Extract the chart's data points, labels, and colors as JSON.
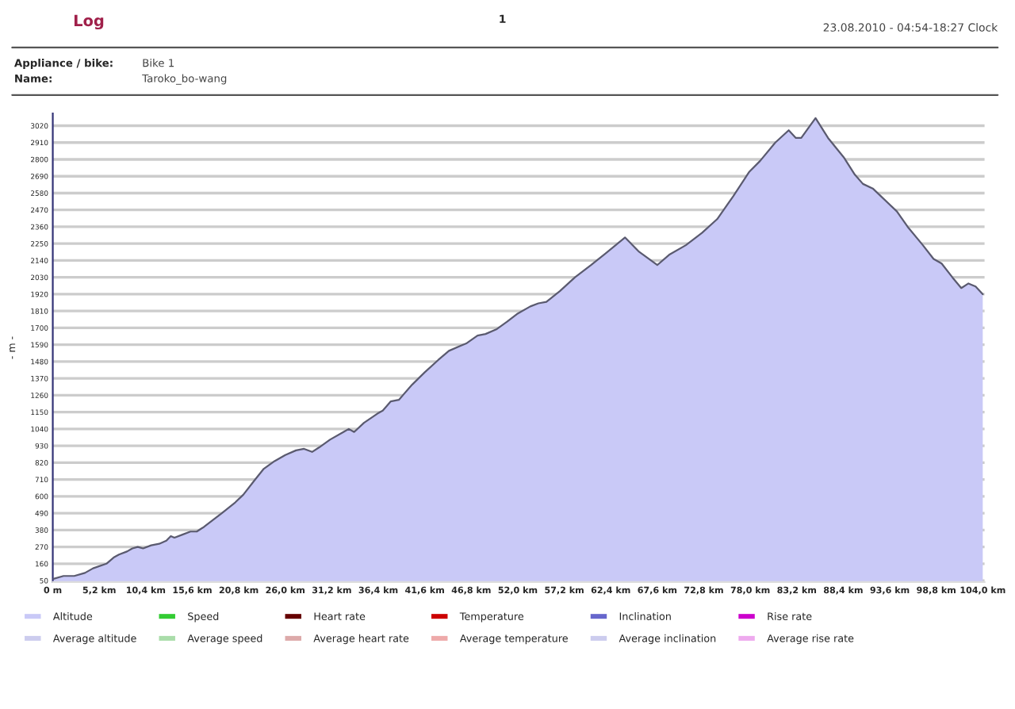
{
  "chart_data": {
    "type": "area",
    "title": "Log",
    "ylabel": "- m -",
    "annotations": [
      "1",
      "23.08.2010 - 04:54-18:27 Clock",
      "Appliance / bike:",
      "Bike 1",
      "Name:",
      "Taroko_bo-wang"
    ],
    "x": [
      0,
      1.2,
      2.4,
      3.6,
      4.5,
      6.0,
      6.8,
      7.4,
      8.3,
      8.9,
      9.5,
      10.1,
      11.0,
      11.9,
      12.7,
      13.2,
      13.6,
      14.5,
      15.4,
      16.1,
      16.9,
      18.0,
      18.9,
      20.4,
      21.3,
      22.5,
      23.6,
      24.8,
      26.0,
      27.2,
      28.1,
      29.0,
      29.8,
      31.0,
      32.5,
      33.1,
      33.7,
      34.8,
      36.3,
      36.9,
      37.8,
      38.7,
      40.2,
      41.6,
      43.1,
      44.3,
      45.5,
      46.3,
      47.5,
      48.4,
      49.6,
      50.8,
      51.9,
      53.4,
      54.3,
      55.2,
      56.7,
      58.4,
      60.2,
      61.7,
      64.0,
      65.5,
      67.6,
      69.0,
      70.8,
      72.6,
      74.3,
      76.1,
      77.9,
      79.1,
      80.8,
      82.3,
      83.1,
      83.7,
      85.3,
      86.7,
      88.5,
      89.7,
      90.6,
      91.7,
      94.4,
      95.6,
      97.3,
      98.5,
      99.4,
      100.6,
      101.6,
      102.4,
      103.2,
      104.0
    ],
    "series": [
      {
        "name": "Altitude",
        "color": "#c9c9f7",
        "values": [
          60,
          80,
          80,
          100,
          130,
          160,
          200,
          220,
          240,
          260,
          270,
          260,
          280,
          290,
          310,
          340,
          330,
          350,
          370,
          370,
          400,
          450,
          490,
          560,
          610,
          700,
          780,
          830,
          870,
          900,
          910,
          890,
          920,
          970,
          1020,
          1040,
          1020,
          1080,
          1140,
          1160,
          1220,
          1230,
          1330,
          1410,
          1490,
          1550,
          1580,
          1600,
          1650,
          1660,
          1690,
          1740,
          1790,
          1840,
          1860,
          1870,
          1940,
          2030,
          2110,
          2180,
          2290,
          2200,
          2110,
          2180,
          2240,
          2320,
          2410,
          2560,
          2720,
          2790,
          2910,
          2990,
          2940,
          2940,
          3070,
          2940,
          2810,
          2700,
          2640,
          2610,
          2460,
          2360,
          2240,
          2150,
          2120,
          2030,
          1960,
          1990,
          1970,
          1920
        ]
      },
      {
        "name": "Speed",
        "color": "#33cc33",
        "values": [
          null,
          null,
          null,
          null,
          null,
          null,
          null,
          null,
          null,
          null,
          null,
          null,
          null,
          null,
          null,
          null,
          null,
          null,
          null,
          null,
          null,
          null,
          null,
          null,
          null,
          null,
          null,
          null,
          null,
          null,
          null,
          null,
          null,
          null,
          null,
          null,
          null,
          null,
          null,
          null,
          null,
          null,
          null,
          null,
          null,
          null,
          null,
          null,
          null,
          null,
          null,
          null,
          null,
          null,
          null,
          null,
          null,
          null,
          null,
          null,
          null,
          null,
          null,
          null,
          null,
          null,
          null,
          null,
          null,
          null,
          null,
          null,
          null,
          null,
          null,
          null,
          null,
          null,
          null,
          null,
          null,
          null,
          null,
          null,
          null,
          null,
          null,
          null,
          null,
          null
        ]
      },
      {
        "name": "Heart rate",
        "color": "#660000",
        "values": [
          null,
          null,
          null,
          null,
          null,
          null,
          null,
          null,
          null,
          null,
          null,
          null,
          null,
          null,
          null,
          null,
          null,
          null,
          null,
          null,
          null,
          null,
          null,
          null,
          null,
          null,
          null,
          null,
          null,
          null,
          null,
          null,
          null,
          null,
          null,
          null,
          null,
          null,
          null,
          null,
          null,
          null,
          null,
          null,
          null,
          null,
          null,
          null,
          null,
          null,
          null,
          null,
          null,
          null,
          null,
          null,
          null,
          null,
          null,
          null,
          null,
          null,
          null,
          null,
          null,
          null,
          null,
          null,
          null,
          null,
          null,
          null,
          null,
          null,
          null,
          null,
          null,
          null,
          null,
          null,
          null,
          null,
          null,
          null,
          null,
          null,
          null,
          null,
          null,
          null
        ]
      },
      {
        "name": "Temperature",
        "color": "#cc0000",
        "values": [
          null,
          null,
          null,
          null,
          null,
          null,
          null,
          null,
          null,
          null,
          null,
          null,
          null,
          null,
          null,
          null,
          null,
          null,
          null,
          null,
          null,
          null,
          null,
          null,
          null,
          null,
          null,
          null,
          null,
          null,
          null,
          null,
          null,
          null,
          null,
          null,
          null,
          null,
          null,
          null,
          null,
          null,
          null,
          null,
          null,
          null,
          null,
          null,
          null,
          null,
          null,
          null,
          null,
          null,
          null,
          null,
          null,
          null,
          null,
          null,
          null,
          null,
          null,
          null,
          null,
          null,
          null,
          null,
          null,
          null,
          null,
          null,
          null,
          null,
          null,
          null,
          null,
          null,
          null,
          null,
          null,
          null,
          null,
          null,
          null,
          null,
          null,
          null,
          null,
          null
        ]
      },
      {
        "name": "Inclination",
        "color": "#6666cc",
        "values": [
          null,
          null,
          null,
          null,
          null,
          null,
          null,
          null,
          null,
          null,
          null,
          null,
          null,
          null,
          null,
          null,
          null,
          null,
          null,
          null,
          null,
          null,
          null,
          null,
          null,
          null,
          null,
          null,
          null,
          null,
          null,
          null,
          null,
          null,
          null,
          null,
          null,
          null,
          null,
          null,
          null,
          null,
          null,
          null,
          null,
          null,
          null,
          null,
          null,
          null,
          null,
          null,
          null,
          null,
          null,
          null,
          null,
          null,
          null,
          null,
          null,
          null,
          null,
          null,
          null,
          null,
          null,
          null,
          null,
          null,
          null,
          null,
          null,
          null,
          null,
          null,
          null,
          null,
          null,
          null,
          null,
          null,
          null,
          null,
          null,
          null,
          null,
          null,
          null,
          null
        ]
      },
      {
        "name": "Rise rate",
        "color": "#cc00cc",
        "values": [
          null,
          null,
          null,
          null,
          null,
          null,
          null,
          null,
          null,
          null,
          null,
          null,
          null,
          null,
          null,
          null,
          null,
          null,
          null,
          null,
          null,
          null,
          null,
          null,
          null,
          null,
          null,
          null,
          null,
          null,
          null,
          null,
          null,
          null,
          null,
          null,
          null,
          null,
          null,
          null,
          null,
          null,
          null,
          null,
          null,
          null,
          null,
          null,
          null,
          null,
          null,
          null,
          null,
          null,
          null,
          null,
          null,
          null,
          null,
          null,
          null,
          null,
          null,
          null,
          null,
          null,
          null,
          null,
          null,
          null,
          null,
          null,
          null,
          null,
          null,
          null,
          null,
          null,
          null,
          null,
          null,
          null,
          null,
          null,
          null,
          null,
          null,
          null,
          null,
          null
        ]
      },
      {
        "name": "Average altitude",
        "color": "#ccccee",
        "values": [
          null,
          null,
          null,
          null,
          null,
          null,
          null,
          null,
          null,
          null,
          null,
          null,
          null,
          null,
          null,
          null,
          null,
          null,
          null,
          null,
          null,
          null,
          null,
          null,
          null,
          null,
          null,
          null,
          null,
          null,
          null,
          null,
          null,
          null,
          null,
          null,
          null,
          null,
          null,
          null,
          null,
          null,
          null,
          null,
          null,
          null,
          null,
          null,
          null,
          null,
          null,
          null,
          null,
          null,
          null,
          null,
          null,
          null,
          null,
          null,
          null,
          null,
          null,
          null,
          null,
          null,
          null,
          null,
          null,
          null,
          null,
          null,
          null,
          null,
          null,
          null,
          null,
          null,
          null,
          null,
          null,
          null,
          null,
          null,
          null,
          null,
          null,
          null,
          null,
          null
        ]
      },
      {
        "name": "Average speed",
        "color": "#aaddaa",
        "values": [
          null,
          null,
          null,
          null,
          null,
          null,
          null,
          null,
          null,
          null,
          null,
          null,
          null,
          null,
          null,
          null,
          null,
          null,
          null,
          null,
          null,
          null,
          null,
          null,
          null,
          null,
          null,
          null,
          null,
          null,
          null,
          null,
          null,
          null,
          null,
          null,
          null,
          null,
          null,
          null,
          null,
          null,
          null,
          null,
          null,
          null,
          null,
          null,
          null,
          null,
          null,
          null,
          null,
          null,
          null,
          null,
          null,
          null,
          null,
          null,
          null,
          null,
          null,
          null,
          null,
          null,
          null,
          null,
          null,
          null,
          null,
          null,
          null,
          null,
          null,
          null,
          null,
          null,
          null,
          null,
          null,
          null,
          null,
          null,
          null,
          null,
          null,
          null,
          null,
          null
        ]
      },
      {
        "name": "Average heart rate",
        "color": "#ddaaaa",
        "values": [
          null,
          null,
          null,
          null,
          null,
          null,
          null,
          null,
          null,
          null,
          null,
          null,
          null,
          null,
          null,
          null,
          null,
          null,
          null,
          null,
          null,
          null,
          null,
          null,
          null,
          null,
          null,
          null,
          null,
          null,
          null,
          null,
          null,
          null,
          null,
          null,
          null,
          null,
          null,
          null,
          null,
          null,
          null,
          null,
          null,
          null,
          null,
          null,
          null,
          null,
          null,
          null,
          null,
          null,
          null,
          null,
          null,
          null,
          null,
          null,
          null,
          null,
          null,
          null,
          null,
          null,
          null,
          null,
          null,
          null,
          null,
          null,
          null,
          null,
          null,
          null,
          null,
          null,
          null,
          null,
          null,
          null,
          null,
          null,
          null,
          null,
          null,
          null,
          null,
          null
        ]
      },
      {
        "name": "Average temperature",
        "color": "#eeaaaa",
        "values": [
          null,
          null,
          null,
          null,
          null,
          null,
          null,
          null,
          null,
          null,
          null,
          null,
          null,
          null,
          null,
          null,
          null,
          null,
          null,
          null,
          null,
          null,
          null,
          null,
          null,
          null,
          null,
          null,
          null,
          null,
          null,
          null,
          null,
          null,
          null,
          null,
          null,
          null,
          null,
          null,
          null,
          null,
          null,
          null,
          null,
          null,
          null,
          null,
          null,
          null,
          null,
          null,
          null,
          null,
          null,
          null,
          null,
          null,
          null,
          null,
          null,
          null,
          null,
          null,
          null,
          null,
          null,
          null,
          null,
          null,
          null,
          null,
          null,
          null,
          null,
          null,
          null,
          null,
          null,
          null,
          null,
          null,
          null,
          null,
          null,
          null,
          null,
          null,
          null,
          null
        ]
      },
      {
        "name": "Average inclination",
        "color": "#ccccee",
        "values": [
          null,
          null,
          null,
          null,
          null,
          null,
          null,
          null,
          null,
          null,
          null,
          null,
          null,
          null,
          null,
          null,
          null,
          null,
          null,
          null,
          null,
          null,
          null,
          null,
          null,
          null,
          null,
          null,
          null,
          null,
          null,
          null,
          null,
          null,
          null,
          null,
          null,
          null,
          null,
          null,
          null,
          null,
          null,
          null,
          null,
          null,
          null,
          null,
          null,
          null,
          null,
          null,
          null,
          null,
          null,
          null,
          null,
          null,
          null,
          null,
          null,
          null,
          null,
          null,
          null,
          null,
          null,
          null,
          null,
          null,
          null,
          null,
          null,
          null,
          null,
          null,
          null,
          null,
          null,
          null,
          null,
          null,
          null,
          null,
          null,
          null,
          null,
          null,
          null,
          null
        ]
      },
      {
        "name": "Average rise rate",
        "color": "#eeaaee",
        "values": [
          null,
          null,
          null,
          null,
          null,
          null,
          null,
          null,
          null,
          null,
          null,
          null,
          null,
          null,
          null,
          null,
          null,
          null,
          null,
          null,
          null,
          null,
          null,
          null,
          null,
          null,
          null,
          null,
          null,
          null,
          null,
          null,
          null,
          null,
          null,
          null,
          null,
          null,
          null,
          null,
          null,
          null,
          null,
          null,
          null,
          null,
          null,
          null,
          null,
          null,
          null,
          null,
          null,
          null,
          null,
          null,
          null,
          null,
          null,
          null,
          null,
          null,
          null,
          null,
          null,
          null,
          null,
          null,
          null,
          null,
          null,
          null,
          null,
          null,
          null,
          null,
          null,
          null,
          null,
          null,
          null,
          null,
          null,
          null,
          null,
          null,
          null,
          null,
          null,
          null
        ]
      }
    ],
    "xlim": [
      0,
      104.2
    ],
    "ylim": [
      40,
      3100
    ],
    "xticks": [
      {
        "value": 0,
        "label": "0 m"
      },
      {
        "value": 5.2,
        "label": "5,2 km"
      },
      {
        "value": 10.4,
        "label": "10,4 km"
      },
      {
        "value": 15.6,
        "label": "15,6 km"
      },
      {
        "value": 20.8,
        "label": "20,8 km"
      },
      {
        "value": 26.0,
        "label": "26,0 km"
      },
      {
        "value": 31.2,
        "label": "31,2 km"
      },
      {
        "value": 36.4,
        "label": "36,4 km"
      },
      {
        "value": 41.6,
        "label": "41,6 km"
      },
      {
        "value": 46.8,
        "label": "46,8 km"
      },
      {
        "value": 52.0,
        "label": "52,0 km"
      },
      {
        "value": 57.2,
        "label": "57,2 km"
      },
      {
        "value": 62.4,
        "label": "62,4 km"
      },
      {
        "value": 67.6,
        "label": "67,6 km"
      },
      {
        "value": 72.8,
        "label": "72,8 km"
      },
      {
        "value": 78.0,
        "label": "78,0 km"
      },
      {
        "value": 83.2,
        "label": "83,2 km"
      },
      {
        "value": 88.4,
        "label": "88,4 km"
      },
      {
        "value": 93.6,
        "label": "93,6 km"
      },
      {
        "value": 98.8,
        "label": "98,8 km"
      },
      {
        "value": 104.0,
        "label": "104,0 km"
      }
    ],
    "yticks": [
      50,
      160,
      270,
      380,
      490,
      600,
      710,
      820,
      930,
      1040,
      1150,
      1260,
      1370,
      1480,
      1590,
      1700,
      1810,
      1920,
      2030,
      2140,
      2250,
      2360,
      2470,
      2580,
      2690,
      2800,
      2910,
      3020
    ],
    "grid": "y",
    "legend": "bottom"
  }
}
